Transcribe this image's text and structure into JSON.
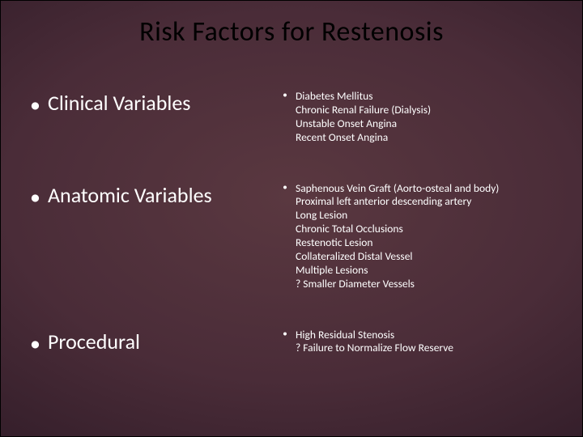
{
  "title": "Risk Factors for Restenosis",
  "title_fontsize": 34,
  "title_color": "#000000",
  "text_color": "#ffffff",
  "background_gradient": {
    "center": "#5a3840",
    "mid": "#4a2c38",
    "outer": "#2a1824",
    "edge": "#120810"
  },
  "left_fontsize": 26,
  "right_fontsize": 13.5,
  "bullet_char": "•",
  "sections": [
    {
      "heading": "Clinical Variables",
      "items": [
        "Diabetes Mellitus",
        "Chronic Renal Failure (Dialysis)",
        "Unstable Onset Angina",
        "Recent Onset Angina"
      ]
    },
    {
      "heading": "Anatomic Variables",
      "items": [
        "Saphenous Vein Graft (Aorto-osteal and body)",
        "Proximal left anterior descending artery",
        "Long Lesion",
        "Chronic Total Occlusions",
        "Restenotic Lesion",
        "Collateralized Distal Vessel",
        "Multiple Lesions",
        "? Smaller Diameter Vessels"
      ]
    },
    {
      "heading": "Procedural",
      "items": [
        "High Residual Stenosis",
        "? Failure to Normalize Flow Reserve"
      ]
    }
  ]
}
